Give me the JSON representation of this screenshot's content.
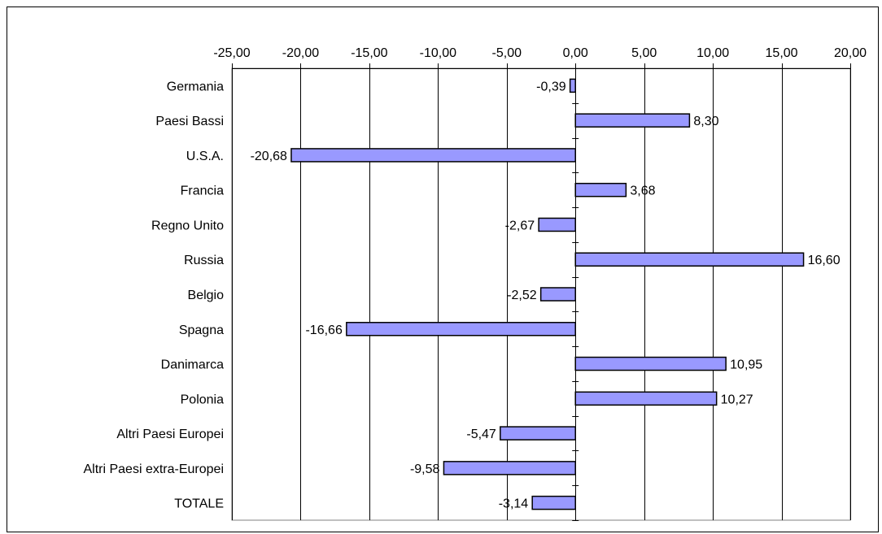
{
  "chart_data": {
    "type": "bar",
    "orientation": "horizontal",
    "categories": [
      "Germania",
      "Paesi Bassi",
      "U.S.A.",
      "Francia",
      "Regno Unito",
      "Russia",
      "Belgio",
      "Spagna",
      "Danimarca",
      "Polonia",
      "Altri Paesi Europei",
      "Altri Paesi extra-Europei",
      "TOTALE"
    ],
    "values": [
      -0.39,
      8.3,
      -20.68,
      3.68,
      -2.67,
      16.6,
      -2.52,
      -16.66,
      10.95,
      10.27,
      -5.47,
      -9.58,
      -3.14
    ],
    "value_labels": [
      "-0,39",
      "8,30",
      "-20,68",
      "3,68",
      "-2,67",
      "16,60",
      "-2,52",
      "-16,66",
      "10,95",
      "10,27",
      "-5,47",
      "-9,58",
      "-3,14"
    ],
    "x_ticks": [
      "-25,00",
      "-20,00",
      "-15,00",
      "-10,00",
      "-5,00",
      "0,00",
      "5,00",
      "10,00",
      "15,00",
      "20,00"
    ],
    "xlim": [
      -25,
      20
    ],
    "x_axis_position": "top",
    "grid": true,
    "legend": "none",
    "title": "",
    "xlabel": "",
    "ylabel": "",
    "colors": {
      "bar_fill": "#9999ff",
      "bar_stroke": "#000000",
      "grid": "#000000",
      "plot_border": "#808080"
    }
  }
}
